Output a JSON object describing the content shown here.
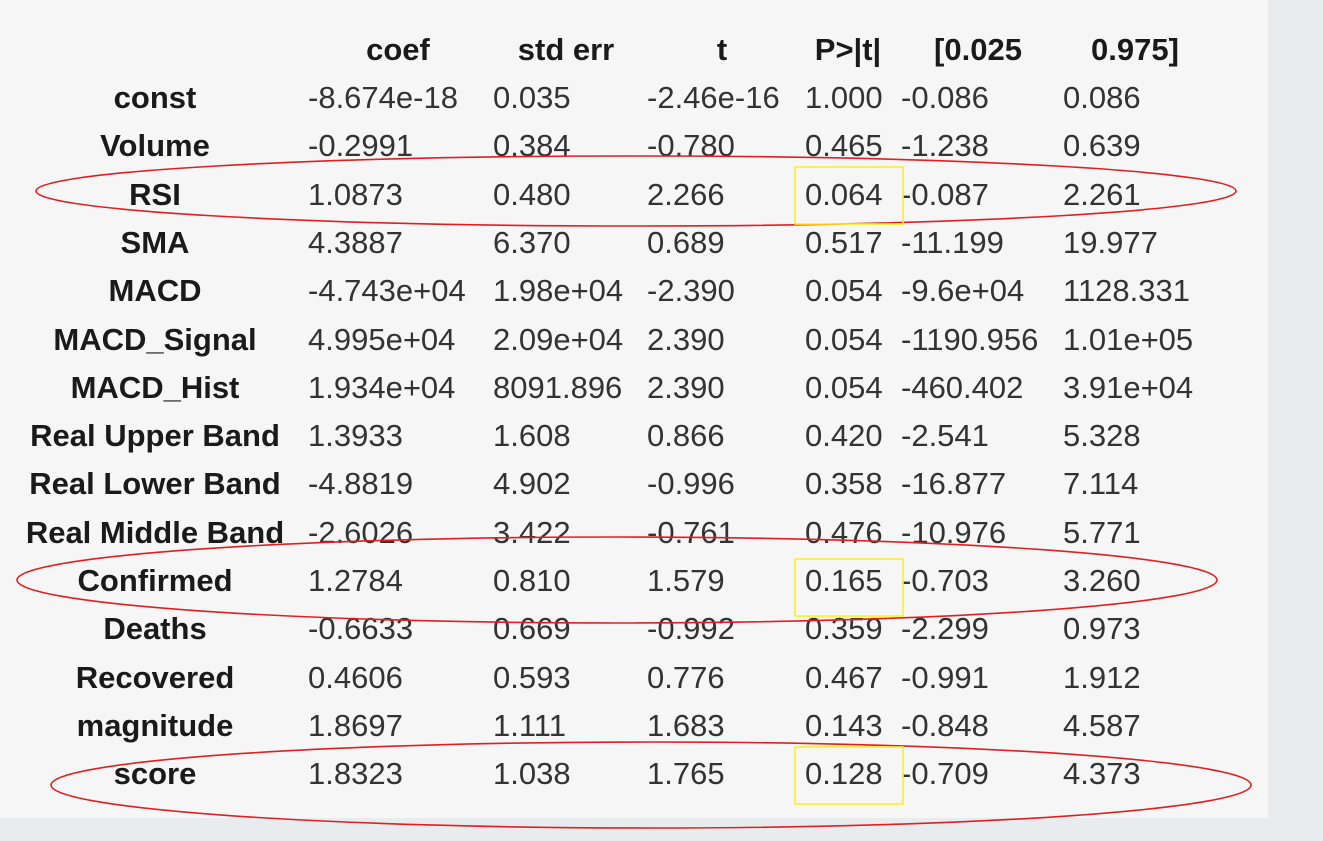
{
  "table": {
    "columns": [
      "coef",
      "std err",
      "t",
      "P>|t|",
      "[0.025",
      "0.975]"
    ],
    "rows": [
      {
        "name": "const",
        "values": [
          "-8.674e-18",
          "0.035",
          "-2.46e-16",
          "1.000",
          "-0.086",
          "0.086"
        ]
      },
      {
        "name": "Volume",
        "values": [
          "-0.2991",
          "0.384",
          "-0.780",
          "0.465",
          "-1.238",
          "0.639"
        ]
      },
      {
        "name": "RSI",
        "values": [
          "1.0873",
          "0.480",
          "2.266",
          "0.064",
          "-0.087",
          "2.261"
        ]
      },
      {
        "name": "SMA",
        "values": [
          "4.3887",
          "6.370",
          "0.689",
          "0.517",
          "-11.199",
          "19.977"
        ]
      },
      {
        "name": "MACD",
        "values": [
          "-4.743e+04",
          "1.98e+04",
          "-2.390",
          "0.054",
          "-9.6e+04",
          "1128.331"
        ]
      },
      {
        "name": "MACD_Signal",
        "values": [
          "4.995e+04",
          "2.09e+04",
          "2.390",
          "0.054",
          "-1190.956",
          "1.01e+05"
        ]
      },
      {
        "name": "MACD_Hist",
        "values": [
          "1.934e+04",
          "8091.896",
          "2.390",
          "0.054",
          "-460.402",
          "3.91e+04"
        ]
      },
      {
        "name": "Real Upper Band",
        "values": [
          "1.3933",
          "1.608",
          "0.866",
          "0.420",
          "-2.541",
          "5.328"
        ]
      },
      {
        "name": "Real Lower Band",
        "values": [
          "-4.8819",
          "4.902",
          "-0.996",
          "0.358",
          "-16.877",
          "7.114"
        ]
      },
      {
        "name": "Real Middle Band",
        "values": [
          "-2.6026",
          "3.422",
          "-0.761",
          "0.476",
          "-10.976",
          "5.771"
        ]
      },
      {
        "name": "Confirmed",
        "values": [
          "1.2784",
          "0.810",
          "1.579",
          "0.165",
          "-0.703",
          "3.260"
        ]
      },
      {
        "name": "Deaths",
        "values": [
          "-0.6633",
          "0.669",
          "-0.992",
          "0.359",
          "-2.299",
          "0.973"
        ]
      },
      {
        "name": "Recovered",
        "values": [
          "0.4606",
          "0.593",
          "0.776",
          "0.467",
          "-0.991",
          "1.912"
        ]
      },
      {
        "name": "magnitude",
        "values": [
          "1.8697",
          "1.111",
          "1.683",
          "0.143",
          "-0.848",
          "4.587"
        ]
      },
      {
        "name": "score",
        "values": [
          "1.8323",
          "1.038",
          "1.765",
          "0.128",
          "-0.709",
          "4.373"
        ]
      }
    ]
  },
  "annotations": {
    "highlighted_rows": [
      "RSI",
      "Confirmed",
      "score"
    ],
    "ellipse_color": "#e02020",
    "box_color": "#ffee22"
  }
}
